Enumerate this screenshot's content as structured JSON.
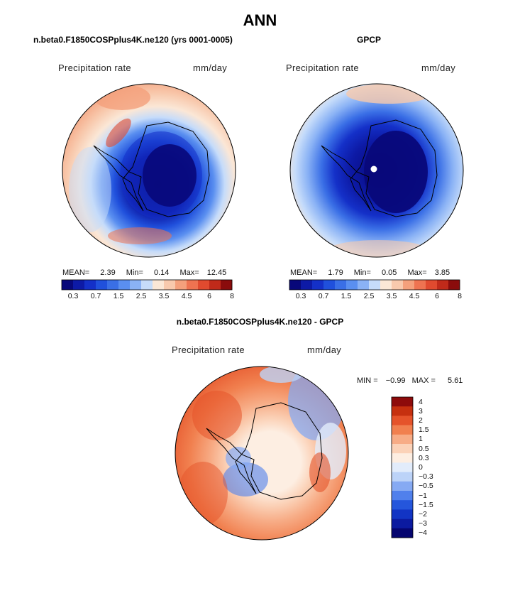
{
  "page": {
    "title": "ANN"
  },
  "panels": [
    {
      "title": "n.beta0.F1850COSPplus4K.ne120 (yrs 0001-0005)",
      "variable": "Precipitation rate",
      "units": "mm/day",
      "mean_label": "MEAN=",
      "mean": "2.39",
      "min_label": "Min=",
      "min": "0.14",
      "max_label": "Max=",
      "max": "12.45"
    },
    {
      "title": "GPCP",
      "variable": "Precipitation rate",
      "units": "mm/day",
      "mean_label": "MEAN=",
      "mean": "1.79",
      "min_label": "Min=",
      "min": "0.05",
      "max_label": "Max=",
      "max": "3.85"
    },
    {
      "title": "n.beta0.F1850COSPplus4K.ne120 - GPCP",
      "variable": "Precipitation rate",
      "units": "mm/day",
      "min_label": "MIN =",
      "min": "−0.99",
      "max_label": "MAX =",
      "max": "5.61"
    }
  ],
  "colors": {
    "ocean_scale": [
      "#08087a",
      "#0d1aa6",
      "#1430c8",
      "#2050dc",
      "#3a6fe6",
      "#5a8ff0",
      "#8ab2f5",
      "#c6dcfa",
      "#fbe7d6",
      "#f8c9ad",
      "#f4a07c",
      "#ee7351",
      "#e04a2f",
      "#c02a1a",
      "#8a0c0c"
    ],
    "diff_scale": [
      "#050570",
      "#0b1aa0",
      "#1234c4",
      "#2556dc",
      "#5080ec",
      "#86aaf3",
      "#bcd3f8",
      "#e2ecfb",
      "#fdeee2",
      "#fbd2b8",
      "#f7ac86",
      "#f1804f",
      "#e5532a",
      "#c6300f",
      "#8e0b0b"
    ]
  },
  "chart_data": [
    {
      "type": "heatmap",
      "title": "n.beta0.F1850COSPplus4K.ne120 (yrs 0001-0005)",
      "variable": "Precipitation rate",
      "units": "mm/day",
      "projection": "south polar stereographic",
      "stats": {
        "mean": 2.39,
        "min": 0.14,
        "max": 12.45
      },
      "contour_levels": [
        0.3,
        0.5,
        0.7,
        1,
        1.5,
        2,
        2.5,
        3,
        3.5,
        4,
        4.5,
        5,
        6,
        7,
        8
      ],
      "colorbar_tick_labels": [
        "0.3",
        "0.7",
        "1.5",
        "2.5",
        "3.5",
        "4.5",
        "6",
        "8"
      ]
    },
    {
      "type": "heatmap",
      "title": "GPCP",
      "variable": "Precipitation rate",
      "units": "mm/day",
      "projection": "south polar stereographic",
      "stats": {
        "mean": 1.79,
        "min": 0.05,
        "max": 3.85
      },
      "contour_levels": [
        0.3,
        0.5,
        0.7,
        1,
        1.5,
        2,
        2.5,
        3,
        3.5,
        4,
        4.5,
        5,
        6,
        7,
        8
      ],
      "colorbar_tick_labels": [
        "0.3",
        "0.7",
        "1.5",
        "2.5",
        "3.5",
        "4.5",
        "6",
        "8"
      ]
    },
    {
      "type": "heatmap",
      "title": "n.beta0.F1850COSPplus4K.ne120 - GPCP",
      "variable": "Precipitation rate",
      "units": "mm/day",
      "projection": "south polar stereographic",
      "stats": {
        "min": -0.99,
        "max": 5.61
      },
      "contour_levels": [
        -4,
        -3,
        -2,
        -1.5,
        -1,
        -0.5,
        -0.3,
        0,
        0.3,
        0.5,
        1,
        1.5,
        2,
        3,
        4
      ],
      "colorbar_tick_labels": [
        "4",
        "3",
        "2",
        "1.5",
        "1",
        "0.5",
        "0.3",
        "0",
        "−0.3",
        "−0.5",
        "−1",
        "−1.5",
        "−2",
        "−3",
        "−4"
      ]
    }
  ]
}
